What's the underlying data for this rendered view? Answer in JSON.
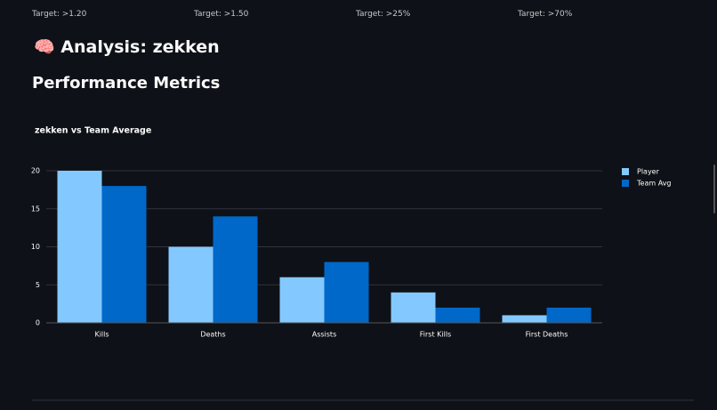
{
  "targets": [
    "Target: >1.20",
    "Target: >1.50",
    "Target: >25%",
    "Target: >70%"
  ],
  "heading": "🧠 Analysis: zekken",
  "subheading": "Performance Metrics",
  "chart_data": {
    "type": "bar",
    "title": "zekken vs Team Average",
    "categories": [
      "Kills",
      "Deaths",
      "Assists",
      "First Kills",
      "First Deaths"
    ],
    "series": [
      {
        "name": "Player",
        "color": "#83c9ff",
        "values": [
          20,
          10,
          6,
          4,
          1
        ]
      },
      {
        "name": "Team Avg",
        "color": "#0068c9",
        "values": [
          18,
          14,
          8,
          2,
          2
        ]
      }
    ],
    "ylim": [
      0,
      20
    ],
    "yticks": [
      0,
      5,
      10,
      15,
      20
    ],
    "grid": true,
    "legend": "right"
  }
}
